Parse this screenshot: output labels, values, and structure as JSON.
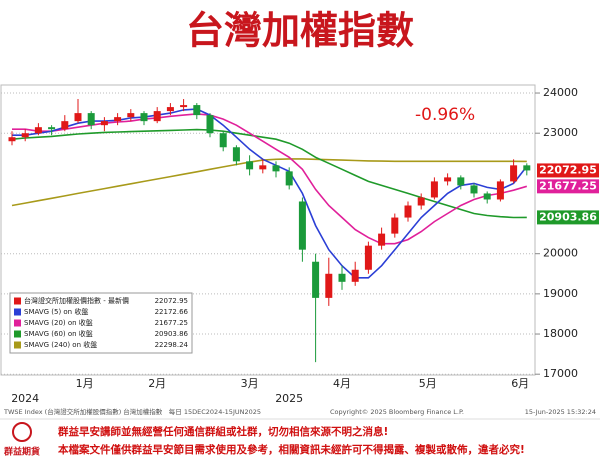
{
  "chart_data": {
    "type": "candlestick",
    "title": "台灣加權指數",
    "annotation": "-0.96%",
    "categories": [
      null,
      null,
      null,
      null,
      null,
      null,
      null,
      null,
      null,
      null,
      null,
      null,
      null,
      null,
      null,
      null,
      null,
      null,
      null,
      null,
      null,
      null,
      null,
      null,
      null,
      null,
      null,
      null,
      null,
      null,
      null,
      null,
      null,
      null,
      null,
      null,
      null,
      null,
      null,
      null
    ],
    "xticks": [
      {
        "value": 5.5,
        "label": "1月"
      },
      {
        "value": 11,
        "label": "2月"
      },
      {
        "value": 18,
        "label": "3月"
      },
      {
        "value": 25,
        "label": "4月"
      },
      {
        "value": 31.5,
        "label": "5月"
      },
      {
        "value": 38.5,
        "label": "6月"
      }
    ],
    "year_labels": [
      {
        "value": 1,
        "label": "2024"
      },
      {
        "value": 21,
        "label": "2025"
      }
    ],
    "ylim": [
      16980,
      24200
    ],
    "yticks": [
      17000,
      18000,
      19000,
      20000,
      23000,
      24000
    ],
    "grid": true,
    "up_color": "#e01818",
    "down_color": "#1a9a3a",
    "ohlc": {
      "name": "台灣證交所加權股價指數 - 最新價",
      "color": "#e01818",
      "open": [
        22800,
        22900,
        23000,
        23150,
        23100,
        23300,
        23500,
        23200,
        23300,
        23400,
        23500,
        23300,
        23550,
        23650,
        23700,
        23450,
        23000,
        22650,
        22300,
        22100,
        22200,
        22050,
        21300,
        19800,
        18900,
        19500,
        19300,
        19600,
        20200,
        20500,
        20900,
        21200,
        21400,
        21800,
        21900,
        21700,
        21500,
        21350,
        21800,
        22200
      ],
      "high": [
        23050,
        23100,
        23250,
        23200,
        23450,
        23850,
        23550,
        23400,
        23500,
        23600,
        23550,
        23650,
        23750,
        23850,
        23750,
        23500,
        23050,
        22700,
        22450,
        22350,
        22300,
        22150,
        21400,
        20000,
        19900,
        19700,
        19800,
        20300,
        20650,
        21000,
        21300,
        21500,
        21900,
        22000,
        21950,
        21750,
        21550,
        21850,
        22350,
        22250
      ],
      "low": [
        22700,
        22800,
        22950,
        22950,
        23050,
        23250,
        23100,
        23050,
        23200,
        23300,
        23200,
        23250,
        23450,
        23550,
        23350,
        22900,
        22550,
        22200,
        21950,
        22000,
        21900,
        21600,
        19800,
        17300,
        18700,
        19100,
        19200,
        19500,
        20100,
        20400,
        20800,
        21100,
        21350,
        21700,
        21600,
        21400,
        21250,
        21300,
        21750,
        21950
      ],
      "close": [
        22900,
        23000,
        23150,
        23100,
        23300,
        23500,
        23200,
        23300,
        23400,
        23500,
        23300,
        23550,
        23650,
        23700,
        23450,
        23000,
        22650,
        22300,
        22100,
        22200,
        22050,
        21700,
        20100,
        18900,
        19500,
        19300,
        19600,
        20200,
        20500,
        20900,
        21200,
        21400,
        21800,
        21900,
        21700,
        21500,
        21350,
        21800,
        22200,
        22072.95
      ]
    },
    "series": [
      {
        "name": "SMAVG (5) on 收盤",
        "color": "#2b3fd6",
        "values": [
          22950,
          22950,
          23000,
          23050,
          23150,
          23250,
          23300,
          23300,
          23320,
          23380,
          23400,
          23450,
          23500,
          23580,
          23600,
          23450,
          23200,
          22900,
          22600,
          22350,
          22200,
          22050,
          21500,
          20700,
          20100,
          19700,
          19400,
          19400,
          19700,
          20100,
          20500,
          20900,
          21200,
          21500,
          21700,
          21750,
          21650,
          21600,
          21750,
          22172.66
        ]
      },
      {
        "name": "SMAVG (20) on 收盤",
        "color": "#e0209a",
        "values": [
          23100,
          23100,
          23050,
          23050,
          23100,
          23150,
          23200,
          23250,
          23280,
          23300,
          23350,
          23380,
          23420,
          23450,
          23480,
          23450,
          23350,
          23200,
          23000,
          22800,
          22600,
          22400,
          22100,
          21600,
          21200,
          20900,
          20600,
          20400,
          20250,
          20250,
          20350,
          20550,
          20800,
          21000,
          21200,
          21350,
          21450,
          21500,
          21580,
          21677.25
        ]
      },
      {
        "name": "SMAVG (60) on 收盤",
        "color": "#1f9a2a",
        "values": [
          22850,
          22880,
          22900,
          22920,
          22950,
          22980,
          23000,
          23020,
          23030,
          23040,
          23050,
          23060,
          23070,
          23080,
          23090,
          23080,
          23050,
          23000,
          22950,
          22900,
          22850,
          22750,
          22600,
          22400,
          22250,
          22100,
          21950,
          21800,
          21700,
          21600,
          21500,
          21400,
          21300,
          21200,
          21100,
          21000,
          20950,
          20920,
          20900,
          20903.86
        ]
      },
      {
        "name": "SMAVG (240) on 收盤",
        "color": "#a89a1a",
        "values": [
          21200,
          21260,
          21320,
          21380,
          21440,
          21500,
          21560,
          21620,
          21680,
          21740,
          21800,
          21860,
          21920,
          21980,
          22040,
          22100,
          22160,
          22220,
          22280,
          22330,
          22350,
          22360,
          22360,
          22350,
          22340,
          22330,
          22320,
          22310,
          22305,
          22300,
          22300,
          22300,
          22300,
          22300,
          22300,
          22300,
          22300,
          22300,
          22300,
          22298.24
        ]
      }
    ],
    "footer": {
      "source": "TWSE Index (台灣證交所加權股價指數) 台灣加權指數　每日 15DEC2024-15JUN2025",
      "copyright": "Copyright© 2025 Bloomberg Finance L.P.",
      "timestamp": "15-Jun-2025 15:32:24"
    },
    "logo": "群益期貨",
    "disclaimer": [
      "群益早安講師並無經營任何通信群組或社群，切勿相信來源不明之消息!",
      "本檔案文件僅供群益早安節目需求使用及參考，相關資訊未經許可不得揭露、複製或散佈，違者必究!"
    ]
  }
}
